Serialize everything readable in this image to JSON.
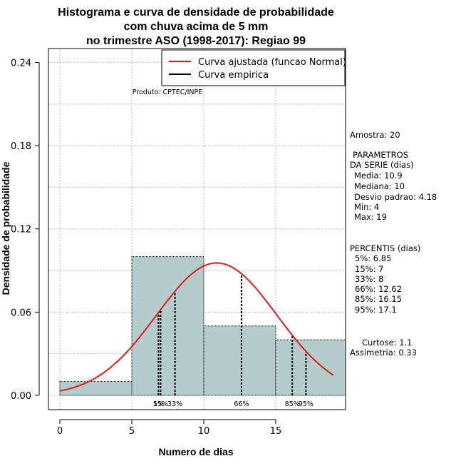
{
  "chart_data": {
    "type": "bar",
    "title_lines": [
      "Histograma e curva de densidade de probabilidade",
      "com chuva acima de 5 mm",
      "no trimestre ASO (1998-2017): Regiao 99"
    ],
    "xlabel": "Numero de dias",
    "ylabel": "Densidade de probabilidade",
    "xlim": [
      0,
      19
    ],
    "ylim": [
      0,
      0.24
    ],
    "x_ticks": [
      0,
      5,
      10,
      15
    ],
    "y_ticks": [
      0.0,
      0.06,
      0.12,
      0.18,
      0.24
    ],
    "y_tick_labels": [
      "0.00",
      "0.06",
      "0.12",
      "0.18",
      "0.24"
    ],
    "grid": true,
    "bins": [
      {
        "x0": 0,
        "x1": 5,
        "density": 0.01
      },
      {
        "x0": 5,
        "x1": 10,
        "density": 0.1
      },
      {
        "x0": 10,
        "x1": 15,
        "density": 0.05
      },
      {
        "x0": 15,
        "x1": 20,
        "density": 0.04
      }
    ],
    "fitted_curve": {
      "name": "Curva ajustada (funcao Normal)",
      "color": "#e31a1c",
      "mean": 10.9,
      "sd": 4.18
    },
    "empirical_curve": {
      "name": "Curva empirica",
      "color": "#000000"
    },
    "legend_position": "top-right",
    "percentile_lines": [
      {
        "label": "5%",
        "x": 6.85
      },
      {
        "label": "15%",
        "x": 7
      },
      {
        "label": "33%",
        "x": 8
      },
      {
        "label": "66%",
        "x": 12.62
      },
      {
        "label": "85%",
        "x": 16.15
      },
      {
        "label": "95%",
        "x": 17.1
      }
    ],
    "producer_label": "Produto: CPTEC/INPE",
    "colors": {
      "bar_fill": "#b5cccc",
      "grid": "#b8b8b8"
    }
  },
  "stats_panel": {
    "sample": "Amostra: 20",
    "params_header_1": "PARAMETROS",
    "params_header_2": "DA SERIE (dias)",
    "media": "Media: 10.9",
    "mediana": "Mediana: 10",
    "desvio": "Desvio padrao: 4.18",
    "min": "Min: 4",
    "max": "Max: 19",
    "percentis_header": "PERCENTIS (dias)",
    "p5": "5%: 6.85",
    "p15": "15%: 7",
    "p33": "33%: 8",
    "p66": "66%: 12.62",
    "p85": "85%: 16.15",
    "p95": "95%: 17.1",
    "curtose": "Curtose: 1.1",
    "assimetria": "Assimetria: 0.33"
  }
}
